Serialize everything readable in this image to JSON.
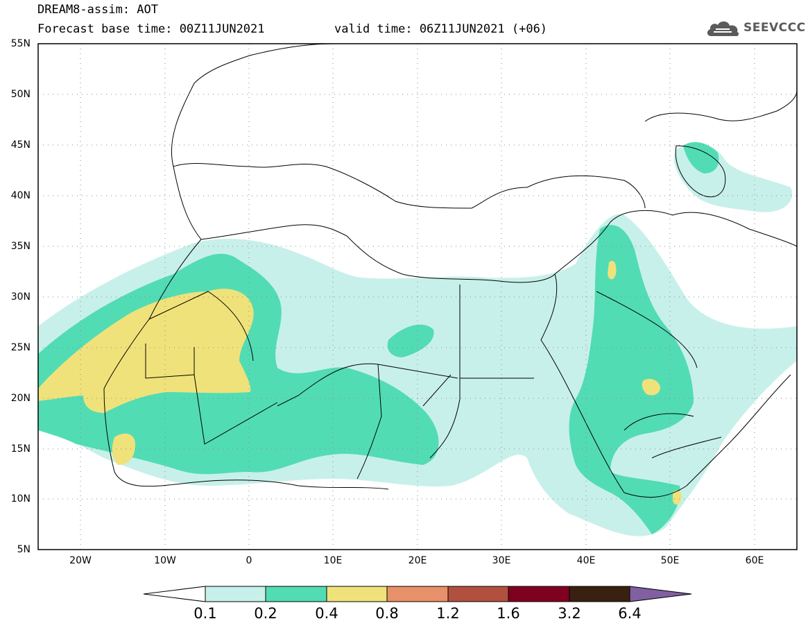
{
  "header": {
    "model_title": "DREAM8-assim: AOT",
    "base_time": "Forecast base time: 00Z11JUN2021",
    "valid_time": "valid time: 06Z11JUN2021 (+06)",
    "logo_text": "SEEVCCC"
  },
  "map": {
    "lat_labels": [
      "55N",
      "50N",
      "45N",
      "40N",
      "35N",
      "30N",
      "25N",
      "20N",
      "15N",
      "10N",
      "5N"
    ],
    "lon_labels": [
      "20W",
      "10W",
      "0",
      "10E",
      "20E",
      "30E",
      "40E",
      "50E",
      "60E"
    ],
    "lat_range": [
      5,
      55
    ],
    "lon_range": [
      -25,
      65
    ]
  },
  "colorbar": {
    "levels": [
      "0.1",
      "0.2",
      "0.4",
      "0.8",
      "1.2",
      "1.6",
      "3.2",
      "6.4"
    ],
    "colors": [
      "#ffffff",
      "#c8f0ea",
      "#52dcb4",
      "#f0e27a",
      "#e8906a",
      "#b25040",
      "#800020",
      "#3a2010",
      "#8060a0"
    ]
  }
}
